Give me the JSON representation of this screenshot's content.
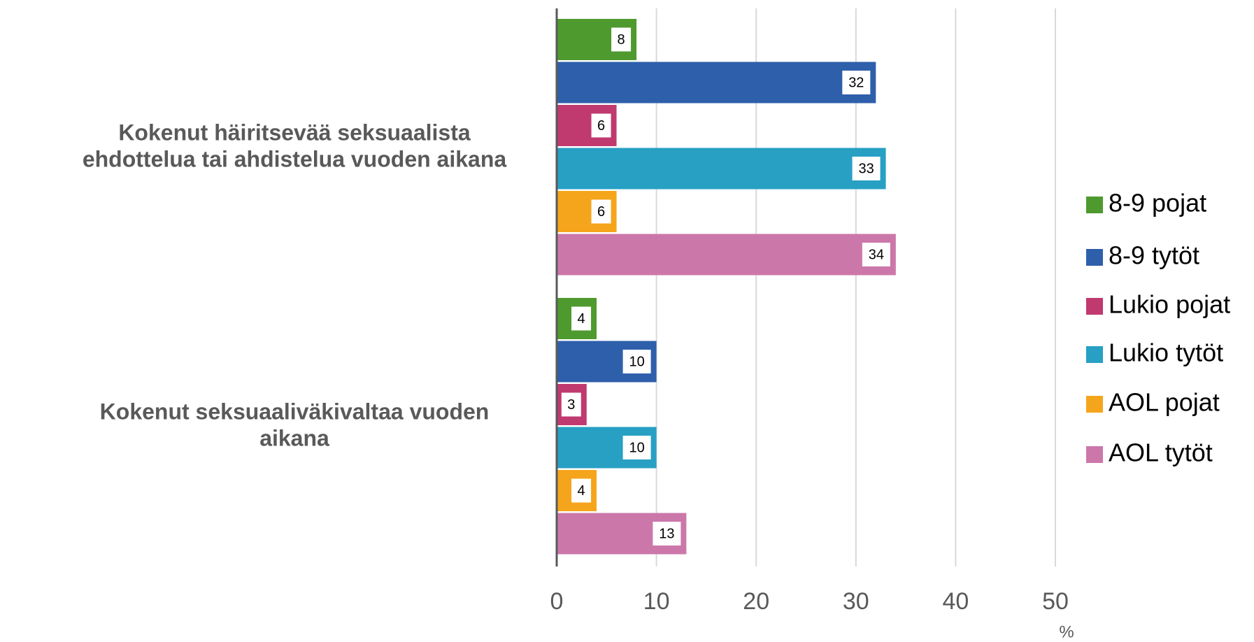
{
  "chart_data": {
    "type": "bar",
    "orientation": "horizontal",
    "categories": [
      "Kokenut häiritsevää seksuaalista ehdottelua tai ahdistelua vuoden aikana",
      "Kokenut seksuaaliväkivaltaa vuoden aikana"
    ],
    "series": [
      {
        "name": "8-9 pojat",
        "color": "#4e9a2f",
        "values": [
          8,
          4
        ]
      },
      {
        "name": "8-9 tytöt",
        "color": "#2e5fab",
        "values": [
          32,
          10
        ]
      },
      {
        "name": "Lukio pojat",
        "color": "#c0396f",
        "values": [
          6,
          3
        ]
      },
      {
        "name": "Lukio tytöt",
        "color": "#27a0c4",
        "values": [
          33,
          10
        ]
      },
      {
        "name": "AOL pojat",
        "color": "#f5a51c",
        "values": [
          6,
          4
        ]
      },
      {
        "name": "AOL tytöt",
        "color": "#cc77aa",
        "values": [
          34,
          13
        ]
      }
    ],
    "xlabel": "%",
    "xlim": [
      0,
      50
    ],
    "xticks": [
      0,
      10,
      20,
      30,
      40,
      50
    ],
    "grid": true,
    "legend": "right"
  }
}
